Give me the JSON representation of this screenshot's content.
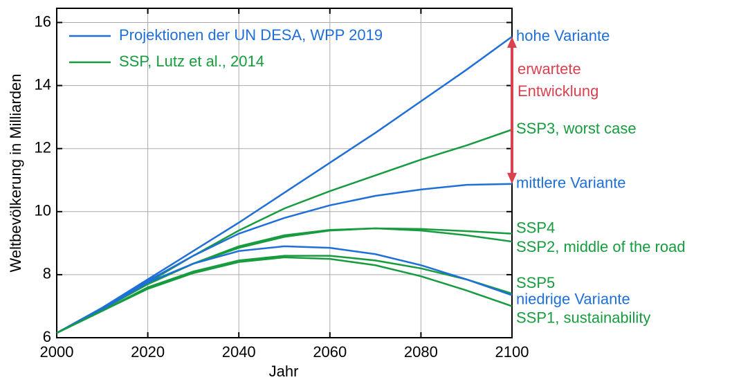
{
  "chart_data": {
    "type": "line",
    "xlabel": "Jahr",
    "ylabel": "Weltbevölkerung in Milliarden",
    "x": [
      2000,
      2010,
      2020,
      2030,
      2040,
      2050,
      2060,
      2070,
      2080,
      2090,
      2100
    ],
    "xlim": [
      2000,
      2100
    ],
    "xticks": [
      2000,
      2020,
      2040,
      2060,
      2080,
      2100
    ],
    "ylim": [
      6,
      16.45
    ],
    "yticks": [
      6,
      8,
      10,
      12,
      14,
      16
    ],
    "grid": true,
    "legend_position": "upper left",
    "legend": [
      {
        "label": "Projektionen der UN DESA, WPP 2019",
        "color": "#1f6fd8"
      },
      {
        "label": "SSP, Lutz et al., 2014",
        "color": "#169c3e"
      }
    ],
    "series": [
      {
        "name": "hohe Variante",
        "color": "#1f6fd8",
        "values": [
          6.15,
          6.95,
          7.85,
          8.75,
          9.65,
          10.6,
          11.55,
          12.5,
          13.5,
          14.5,
          15.55
        ]
      },
      {
        "name": "SSP3, worst case",
        "color": "#169c3e",
        "values": [
          6.15,
          6.9,
          7.75,
          8.6,
          9.4,
          10.1,
          10.65,
          11.15,
          11.65,
          12.1,
          12.6
        ]
      },
      {
        "name": "mittlere Variante",
        "color": "#1f6fd8",
        "values": [
          6.15,
          6.95,
          7.8,
          8.6,
          9.3,
          9.8,
          10.2,
          10.5,
          10.7,
          10.85,
          10.88
        ]
      },
      {
        "name": "SSP4",
        "color": "#169c3e",
        "values": [
          6.15,
          6.9,
          7.7,
          8.35,
          8.85,
          9.2,
          9.4,
          9.47,
          9.45,
          9.38,
          9.3
        ]
      },
      {
        "name": "SSP2, middle of the road",
        "color": "#169c3e",
        "values": [
          6.15,
          6.9,
          7.7,
          8.35,
          8.9,
          9.25,
          9.42,
          9.47,
          9.4,
          9.25,
          9.05
        ]
      },
      {
        "name": "SSP5",
        "color": "#169c3e",
        "values": [
          6.15,
          6.85,
          7.6,
          8.1,
          8.45,
          8.6,
          8.6,
          8.45,
          8.2,
          7.85,
          7.4
        ]
      },
      {
        "name": "niedrige Variante",
        "color": "#1f6fd8",
        "values": [
          6.15,
          6.9,
          7.75,
          8.35,
          8.75,
          8.9,
          8.85,
          8.65,
          8.3,
          7.85,
          7.35
        ]
      },
      {
        "name": "SSP1, sustainability",
        "color": "#169c3e",
        "values": [
          6.15,
          6.85,
          7.55,
          8.05,
          8.4,
          8.55,
          8.5,
          8.3,
          7.95,
          7.5,
          7.0
        ]
      }
    ],
    "annotation": {
      "lines": [
        "erwartete",
        "Entwicklung"
      ],
      "color": "#d94050"
    }
  }
}
